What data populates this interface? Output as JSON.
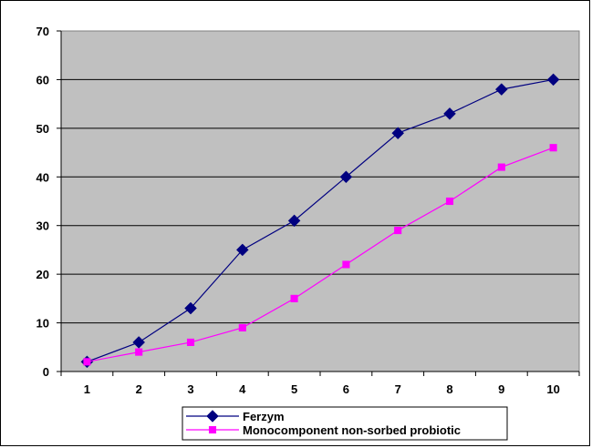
{
  "chart_data": {
    "type": "line",
    "title": "",
    "xlabel": "",
    "ylabel": "",
    "categories": [
      "1",
      "2",
      "3",
      "4",
      "5",
      "6",
      "7",
      "8",
      "9",
      "10"
    ],
    "ylim": [
      0,
      70
    ],
    "yticks": [
      0,
      10,
      20,
      30,
      40,
      50,
      60,
      70
    ],
    "grid": true,
    "plot_background": "#C0C0C0",
    "legend_position": "bottom",
    "series": [
      {
        "name": "Ferzym",
        "values": [
          2,
          6,
          13,
          25,
          31,
          40,
          49,
          53,
          58,
          60
        ],
        "color": "#000080",
        "marker": "diamond"
      },
      {
        "name": "Monocomponent non-sorbed probiotic",
        "values": [
          2,
          4,
          6,
          9,
          15,
          22,
          29,
          35,
          42,
          46
        ],
        "color": "#FF00FF",
        "marker": "square"
      }
    ]
  }
}
